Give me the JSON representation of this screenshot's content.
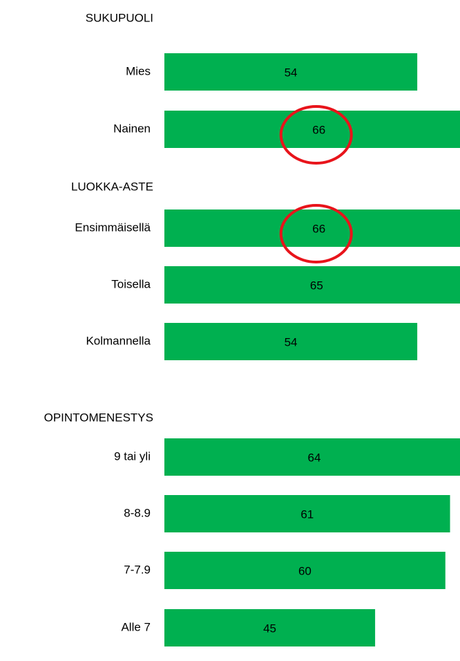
{
  "chart_data": {
    "type": "bar",
    "color": "#00b050",
    "highlight_color": "#e8141b",
    "groups": [
      {
        "title": "SUKUPUOLI",
        "categories": [
          "Mies",
          "Nainen"
        ],
        "values": [
          54,
          66
        ],
        "highlighted": [
          false,
          true
        ]
      },
      {
        "title": "LUOKKA-ASTE",
        "categories": [
          "Ensimmäisellä",
          "Toisella",
          "Kolmannella"
        ],
        "values": [
          66,
          65,
          54
        ],
        "highlighted": [
          true,
          false,
          false
        ]
      },
      {
        "title": "OPINTOMENESTYS",
        "categories": [
          "9 tai yli",
          "8-8.9",
          "7-7.9",
          "Alle 7"
        ],
        "values": [
          64,
          61,
          60,
          45
        ],
        "highlighted": [
          false,
          false,
          false,
          false
        ]
      }
    ]
  }
}
